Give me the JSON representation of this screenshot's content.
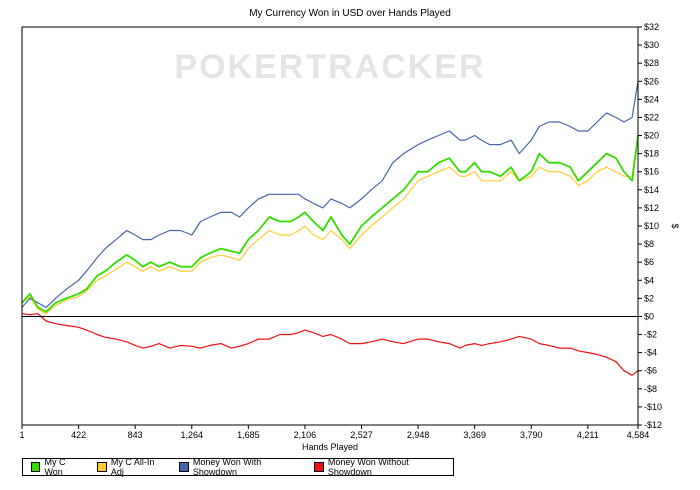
{
  "chart_data": {
    "type": "line",
    "title": "My Currency Won in USD over Hands Played",
    "xlabel": "Hands Played",
    "ylabel": "$",
    "watermark": "POKERTRACKER",
    "xlim": [
      1,
      4584
    ],
    "ylim": [
      -12,
      32
    ],
    "x_ticks": [
      1,
      422,
      843,
      1264,
      1685,
      2106,
      2527,
      2948,
      3369,
      3790,
      4211,
      4584
    ],
    "x_tick_labels": [
      "1",
      "422",
      "843",
      "1,264",
      "1,685",
      "2,106",
      "2,527",
      "2,948",
      "3,369",
      "3,790",
      "4,211",
      "4,584"
    ],
    "y_ticks": [
      32,
      30,
      28,
      26,
      24,
      22,
      20,
      18,
      16,
      14,
      12,
      10,
      8,
      6,
      4,
      2,
      0,
      -2,
      -4,
      -6,
      -8,
      -10,
      -12
    ],
    "y_tick_labels": [
      "$32",
      "$30",
      "$28",
      "$26",
      "$24",
      "$22",
      "$20",
      "$18",
      "$16",
      "$14",
      "$12",
      "$10",
      "$8",
      "$6",
      "$4",
      "$2",
      "$0",
      "-$2",
      "-$4",
      "-$6",
      "-$8",
      "-$10",
      "-$12"
    ],
    "legend_position": "bottom",
    "series": [
      {
        "name": "My C Won",
        "color": "#33dd00",
        "x": [
          1,
          60,
          120,
          180,
          250,
          330,
          422,
          480,
          560,
          620,
          700,
          780,
          843,
          900,
          960,
          1020,
          1100,
          1180,
          1264,
          1330,
          1400,
          1480,
          1560,
          1620,
          1685,
          1760,
          1840,
          1920,
          2000,
          2060,
          2106,
          2170,
          2240,
          2300,
          2380,
          2440,
          2527,
          2600,
          2680,
          2760,
          2840,
          2948,
          3020,
          3100,
          3180,
          3260,
          3300,
          3369,
          3420,
          3480,
          3560,
          3640,
          3700,
          3790,
          3850,
          3920,
          4000,
          4080,
          4140,
          4211,
          4280,
          4350,
          4420,
          4480,
          4540,
          4584
        ],
        "y": [
          1.5,
          2.5,
          1.0,
          0.5,
          1.5,
          2.0,
          2.5,
          3.0,
          4.5,
          5.0,
          6.0,
          6.8,
          6.2,
          5.5,
          6.0,
          5.5,
          6.0,
          5.5,
          5.5,
          6.5,
          7.0,
          7.5,
          7.2,
          7.0,
          8.5,
          9.5,
          11.0,
          10.5,
          10.5,
          11.0,
          11.5,
          10.5,
          9.5,
          11.0,
          9.0,
          8.0,
          10.0,
          11.0,
          12.0,
          13.0,
          14.0,
          16.0,
          16.0,
          17.0,
          17.5,
          16.0,
          16.0,
          17.0,
          16.0,
          16.0,
          15.5,
          16.5,
          15.0,
          16.0,
          18.0,
          17.0,
          17.0,
          16.5,
          15.0,
          16.0,
          17.0,
          18.0,
          17.5,
          16.0,
          15.0,
          20.0
        ]
      },
      {
        "name": "My C All-In Adj",
        "color": "#ffcc33",
        "x": [
          1,
          60,
          120,
          180,
          250,
          330,
          422,
          480,
          560,
          620,
          700,
          780,
          843,
          900,
          960,
          1020,
          1100,
          1180,
          1264,
          1330,
          1400,
          1480,
          1560,
          1620,
          1685,
          1760,
          1840,
          1920,
          2000,
          2060,
          2106,
          2170,
          2240,
          2300,
          2380,
          2440,
          2527,
          2600,
          2680,
          2760,
          2840,
          2948,
          3020,
          3100,
          3180,
          3260,
          3300,
          3369,
          3420,
          3480,
          3560,
          3640,
          3700,
          3790,
          3850,
          3920,
          4000,
          4080,
          4140,
          4211,
          4280,
          4350,
          4420,
          4480,
          4540,
          4584
        ],
        "y": [
          1.5,
          2.2,
          0.8,
          0.3,
          1.2,
          1.8,
          2.2,
          2.8,
          4.0,
          4.5,
          5.2,
          6.0,
          5.5,
          5.0,
          5.5,
          5.0,
          5.5,
          5.0,
          5.0,
          6.0,
          6.5,
          6.8,
          6.5,
          6.2,
          7.5,
          8.5,
          9.5,
          9.0,
          9.0,
          9.5,
          10.0,
          9.0,
          8.5,
          9.5,
          8.5,
          7.5,
          9.0,
          10.0,
          11.0,
          12.0,
          13.0,
          15.0,
          15.5,
          16.0,
          16.5,
          15.5,
          15.5,
          16.0,
          15.0,
          15.0,
          15.0,
          16.0,
          15.0,
          15.5,
          16.5,
          16.0,
          16.0,
          15.5,
          14.5,
          15.0,
          16.0,
          16.5,
          16.0,
          15.5,
          15.5,
          20.0
        ]
      },
      {
        "name": "Money Won With Showdown",
        "color": "#4466aa",
        "x": [
          1,
          60,
          120,
          180,
          250,
          330,
          422,
          480,
          560,
          620,
          700,
          780,
          843,
          900,
          960,
          1020,
          1100,
          1180,
          1264,
          1330,
          1400,
          1480,
          1560,
          1620,
          1685,
          1760,
          1840,
          1920,
          2000,
          2060,
          2106,
          2170,
          2240,
          2300,
          2380,
          2440,
          2527,
          2600,
          2680,
          2760,
          2840,
          2948,
          3020,
          3100,
          3180,
          3260,
          3300,
          3369,
          3420,
          3480,
          3560,
          3640,
          3700,
          3790,
          3850,
          3920,
          4000,
          4080,
          4140,
          4211,
          4280,
          4350,
          4420,
          4480,
          4540,
          4584
        ],
        "y": [
          1.0,
          2.0,
          1.5,
          1.0,
          2.0,
          3.0,
          4.0,
          5.0,
          6.5,
          7.5,
          8.5,
          9.5,
          9.0,
          8.5,
          8.5,
          9.0,
          9.5,
          9.5,
          9.0,
          10.5,
          11.0,
          11.5,
          11.5,
          11.0,
          12.0,
          13.0,
          13.5,
          13.5,
          13.5,
          13.5,
          13.0,
          12.5,
          12.0,
          13.0,
          12.5,
          12.0,
          13.0,
          14.0,
          15.0,
          17.0,
          18.0,
          19.0,
          19.5,
          20.0,
          20.5,
          19.5,
          19.5,
          20.0,
          19.5,
          19.0,
          19.0,
          19.5,
          18.0,
          19.5,
          21.0,
          21.5,
          21.5,
          21.0,
          20.5,
          20.5,
          21.5,
          22.5,
          22.0,
          21.5,
          22.0,
          26.0
        ]
      },
      {
        "name": "Money Won Without Showdown",
        "color": "#ee1111",
        "x": [
          1,
          60,
          120,
          180,
          250,
          330,
          422,
          480,
          560,
          620,
          700,
          780,
          843,
          900,
          960,
          1020,
          1100,
          1180,
          1264,
          1330,
          1400,
          1480,
          1560,
          1620,
          1685,
          1760,
          1840,
          1920,
          2000,
          2060,
          2106,
          2170,
          2240,
          2300,
          2380,
          2440,
          2527,
          2600,
          2680,
          2760,
          2840,
          2948,
          3020,
          3100,
          3180,
          3260,
          3300,
          3369,
          3420,
          3480,
          3560,
          3640,
          3700,
          3790,
          3850,
          3920,
          4000,
          4080,
          4140,
          4211,
          4280,
          4350,
          4420,
          4480,
          4540,
          4584
        ],
        "y": [
          0.3,
          0.2,
          0.3,
          -0.5,
          -0.8,
          -1.0,
          -1.2,
          -1.5,
          -2.0,
          -2.3,
          -2.5,
          -2.8,
          -3.2,
          -3.5,
          -3.3,
          -3.0,
          -3.5,
          -3.2,
          -3.3,
          -3.5,
          -3.2,
          -3.0,
          -3.5,
          -3.3,
          -3.0,
          -2.5,
          -2.5,
          -2.0,
          -2.0,
          -1.8,
          -1.5,
          -1.8,
          -2.2,
          -2.0,
          -2.5,
          -3.0,
          -3.0,
          -2.8,
          -2.5,
          -2.8,
          -3.0,
          -2.5,
          -2.5,
          -2.8,
          -3.0,
          -3.5,
          -3.2,
          -3.0,
          -3.2,
          -3.0,
          -2.8,
          -2.5,
          -2.2,
          -2.5,
          -3.0,
          -3.2,
          -3.5,
          -3.5,
          -3.8,
          -4.0,
          -4.2,
          -4.5,
          -5.0,
          -6.0,
          -6.5,
          -6.0
        ]
      }
    ]
  }
}
